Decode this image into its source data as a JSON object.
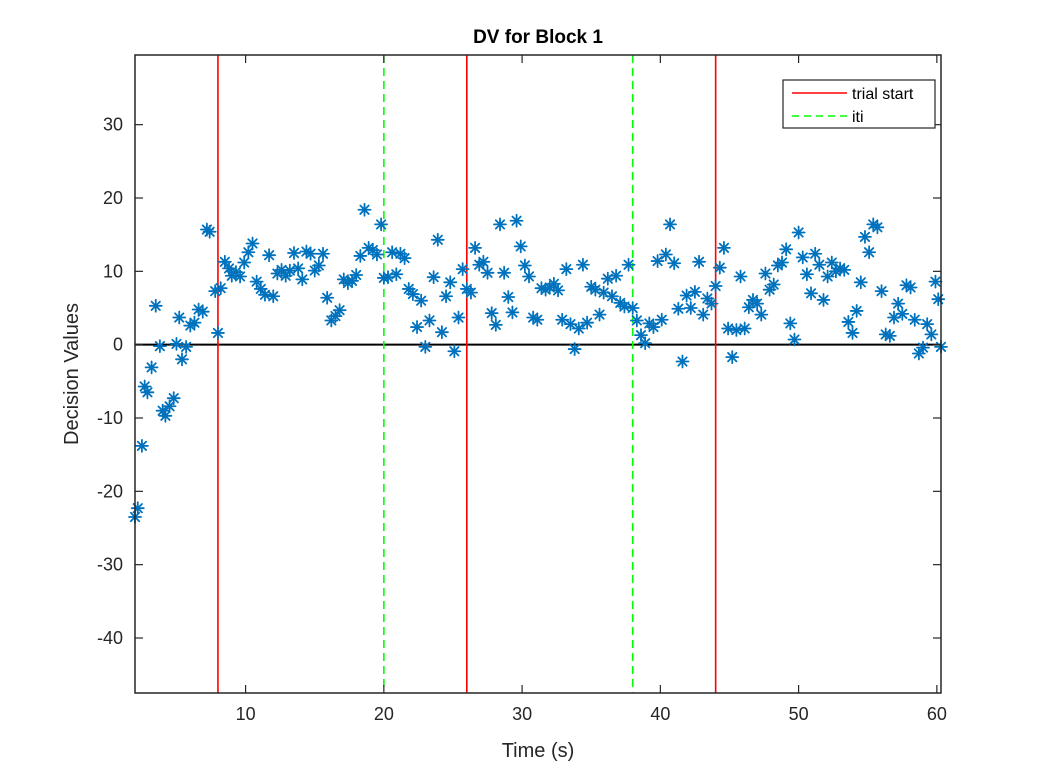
{
  "chart_data": {
    "type": "scatter",
    "title": "DV for Block 1",
    "xlabel": "Time (s)",
    "ylabel": "Decision Values",
    "xlim": [
      2,
      60.3
    ],
    "ylim": [
      -47.5,
      39.5
    ],
    "xticks": [
      10,
      20,
      30,
      40,
      50,
      60
    ],
    "yticks": [
      -40,
      -30,
      -20,
      -10,
      0,
      10,
      20,
      30
    ],
    "grid": false,
    "legend_position": "top-right",
    "zero_line": {
      "y": 0,
      "color": "#000000"
    },
    "marker_color": "#0072BD",
    "series": [
      {
        "name": "",
        "marker": "asterisk",
        "points": [
          [
            2.0,
            -23.5
          ],
          [
            2.2,
            -22.3
          ],
          [
            2.5,
            -13.8
          ],
          [
            2.7,
            -5.7
          ],
          [
            2.9,
            -6.5
          ],
          [
            3.2,
            -3.1
          ],
          [
            3.5,
            5.3
          ],
          [
            3.8,
            -0.2
          ],
          [
            4.0,
            -9.0
          ],
          [
            4.2,
            -9.7
          ],
          [
            4.5,
            -8.4
          ],
          [
            4.8,
            -7.3
          ],
          [
            5.0,
            0.1
          ],
          [
            5.2,
            3.7
          ],
          [
            5.4,
            -2.0
          ],
          [
            5.7,
            -0.3
          ],
          [
            6.0,
            2.6
          ],
          [
            6.3,
            3.0
          ],
          [
            6.6,
            4.8
          ],
          [
            6.9,
            4.5
          ],
          [
            7.2,
            15.7
          ],
          [
            7.4,
            15.4
          ],
          [
            7.8,
            7.3
          ],
          [
            8.0,
            1.6
          ],
          [
            8.2,
            7.7
          ],
          [
            8.5,
            11.3
          ],
          [
            8.8,
            10.4
          ],
          [
            9.0,
            9.4
          ],
          [
            9.3,
            9.9
          ],
          [
            9.6,
            9.3
          ],
          [
            9.9,
            11.2
          ],
          [
            10.2,
            12.6
          ],
          [
            10.5,
            13.8
          ],
          [
            10.8,
            8.6
          ],
          [
            11.1,
            7.6
          ],
          [
            11.4,
            6.8
          ],
          [
            11.7,
            12.2
          ],
          [
            12.0,
            6.6
          ],
          [
            12.3,
            9.7
          ],
          [
            12.6,
            10.2
          ],
          [
            12.9,
            9.4
          ],
          [
            13.2,
            10.1
          ],
          [
            13.5,
            12.5
          ],
          [
            13.8,
            10.4
          ],
          [
            14.1,
            8.9
          ],
          [
            14.4,
            12.7
          ],
          [
            14.7,
            12.4
          ],
          [
            15.0,
            10.1
          ],
          [
            15.3,
            10.8
          ],
          [
            15.6,
            12.4
          ],
          [
            15.9,
            6.4
          ],
          [
            16.2,
            3.3
          ],
          [
            16.5,
            3.9
          ],
          [
            16.8,
            4.7
          ],
          [
            17.1,
            8.9
          ],
          [
            17.4,
            8.4
          ],
          [
            17.7,
            8.7
          ],
          [
            18.0,
            9.5
          ],
          [
            18.3,
            12.1
          ],
          [
            18.6,
            18.4
          ],
          [
            18.9,
            13.2
          ],
          [
            19.2,
            12.9
          ],
          [
            19.5,
            12.3
          ],
          [
            19.8,
            16.4
          ],
          [
            20.0,
            9.1
          ],
          [
            20.3,
            9.2
          ],
          [
            20.6,
            12.6
          ],
          [
            20.9,
            9.6
          ],
          [
            21.2,
            12.4
          ],
          [
            21.5,
            11.8
          ],
          [
            21.8,
            7.6
          ],
          [
            22.1,
            6.9
          ],
          [
            22.4,
            2.4
          ],
          [
            22.7,
            6.0
          ],
          [
            23.0,
            -0.3
          ],
          [
            23.3,
            3.3
          ],
          [
            23.6,
            9.2
          ],
          [
            23.9,
            14.3
          ],
          [
            24.2,
            1.7
          ],
          [
            24.5,
            6.6
          ],
          [
            24.8,
            8.5
          ],
          [
            25.1,
            -0.9
          ],
          [
            25.4,
            3.7
          ],
          [
            25.7,
            10.3
          ],
          [
            26.0,
            7.6
          ],
          [
            26.3,
            7.1
          ],
          [
            26.6,
            13.2
          ],
          [
            26.9,
            10.9
          ],
          [
            27.2,
            11.3
          ],
          [
            27.5,
            9.8
          ],
          [
            27.8,
            4.3
          ],
          [
            28.1,
            2.7
          ],
          [
            28.4,
            16.4
          ],
          [
            28.7,
            9.8
          ],
          [
            29.0,
            6.5
          ],
          [
            29.3,
            4.4
          ],
          [
            29.6,
            16.9
          ],
          [
            29.9,
            13.4
          ],
          [
            30.2,
            10.8
          ],
          [
            30.5,
            9.3
          ],
          [
            30.8,
            3.7
          ],
          [
            31.1,
            3.4
          ],
          [
            31.4,
            7.7
          ],
          [
            31.7,
            7.5
          ],
          [
            32.0,
            7.8
          ],
          [
            32.3,
            8.3
          ],
          [
            32.6,
            7.4
          ],
          [
            32.9,
            3.4
          ],
          [
            33.2,
            10.3
          ],
          [
            33.5,
            2.8
          ],
          [
            33.8,
            -0.6
          ],
          [
            34.1,
            2.2
          ],
          [
            34.4,
            10.9
          ],
          [
            34.7,
            3.0
          ],
          [
            35.0,
            7.9
          ],
          [
            35.3,
            7.5
          ],
          [
            35.6,
            4.1
          ],
          [
            35.9,
            7.1
          ],
          [
            36.2,
            9.0
          ],
          [
            36.5,
            6.6
          ],
          [
            36.8,
            9.4
          ],
          [
            37.1,
            5.7
          ],
          [
            37.4,
            5.2
          ],
          [
            37.7,
            10.9
          ],
          [
            38.0,
            5.0
          ],
          [
            38.3,
            3.3
          ],
          [
            38.6,
            1.3
          ],
          [
            38.9,
            0.2
          ],
          [
            39.2,
            2.9
          ],
          [
            39.5,
            2.4
          ],
          [
            39.8,
            11.4
          ],
          [
            40.1,
            3.4
          ],
          [
            40.4,
            12.3
          ],
          [
            40.7,
            16.4
          ],
          [
            41.0,
            11.1
          ],
          [
            41.3,
            4.9
          ],
          [
            41.6,
            -2.3
          ],
          [
            41.9,
            6.7
          ],
          [
            42.2,
            5.0
          ],
          [
            42.5,
            7.2
          ],
          [
            42.8,
            11.3
          ],
          [
            43.1,
            4.1
          ],
          [
            43.4,
            6.3
          ],
          [
            43.7,
            5.6
          ],
          [
            44.0,
            8.0
          ],
          [
            44.3,
            10.5
          ],
          [
            44.6,
            13.2
          ],
          [
            44.9,
            2.2
          ],
          [
            45.2,
            -1.7
          ],
          [
            45.5,
            2.0
          ],
          [
            45.8,
            9.3
          ],
          [
            46.1,
            2.2
          ],
          [
            46.4,
            5.1
          ],
          [
            46.7,
            6.1
          ],
          [
            47.0,
            5.6
          ],
          [
            47.3,
            4.1
          ],
          [
            47.6,
            9.7
          ],
          [
            47.9,
            7.5
          ],
          [
            48.2,
            8.2
          ],
          [
            48.5,
            10.8
          ],
          [
            48.8,
            11.2
          ],
          [
            49.1,
            13.0
          ],
          [
            49.4,
            2.9
          ],
          [
            49.7,
            0.7
          ],
          [
            50.0,
            15.3
          ],
          [
            50.3,
            11.9
          ],
          [
            50.6,
            9.6
          ],
          [
            50.9,
            7.0
          ],
          [
            51.2,
            12.4
          ],
          [
            51.5,
            10.9
          ],
          [
            51.8,
            6.1
          ],
          [
            52.1,
            9.3
          ],
          [
            52.4,
            11.2
          ],
          [
            52.7,
            10.0
          ],
          [
            53.0,
            10.4
          ],
          [
            53.3,
            10.2
          ],
          [
            53.6,
            3.1
          ],
          [
            53.9,
            1.6
          ],
          [
            54.2,
            4.6
          ],
          [
            54.5,
            8.5
          ],
          [
            54.8,
            14.7
          ],
          [
            55.1,
            12.6
          ],
          [
            55.4,
            16.4
          ],
          [
            55.7,
            16.0
          ],
          [
            56.0,
            7.3
          ],
          [
            56.3,
            1.4
          ],
          [
            56.6,
            1.2
          ],
          [
            56.9,
            3.7
          ],
          [
            57.2,
            5.6
          ],
          [
            57.5,
            4.2
          ],
          [
            57.8,
            8.1
          ],
          [
            58.1,
            7.8
          ],
          [
            58.4,
            3.4
          ],
          [
            58.7,
            -1.2
          ],
          [
            59.0,
            -0.4
          ],
          [
            59.3,
            2.8
          ],
          [
            59.6,
            1.4
          ],
          [
            59.9,
            8.6
          ],
          [
            60.1,
            6.2
          ],
          [
            60.3,
            -0.3
          ]
        ]
      }
    ],
    "vertical_lines": [
      {
        "x": 8,
        "legend": "trial start"
      },
      {
        "x": 20,
        "legend": "iti"
      },
      {
        "x": 26,
        "legend": "trial start"
      },
      {
        "x": 38,
        "legend": "iti"
      },
      {
        "x": 44,
        "legend": "trial start"
      }
    ],
    "legend": [
      {
        "label": "trial start",
        "color": "#FF0000",
        "style": "solid"
      },
      {
        "label": "iti",
        "color": "#00FF00",
        "style": "dashed"
      }
    ]
  }
}
